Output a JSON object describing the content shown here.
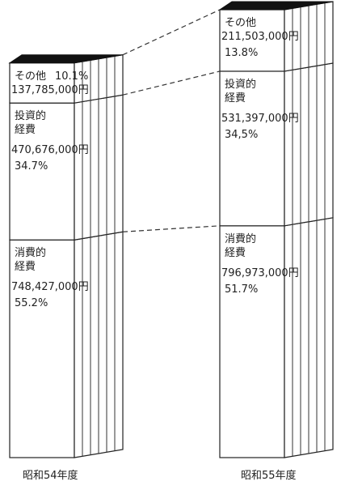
{
  "chart_data": {
    "type": "stacked_bar_3d",
    "categories": [
      "昭和54年度",
      "昭和55年度"
    ],
    "series": [
      {
        "name": "その他",
        "color": "#ffffff",
        "values": [
          137785000,
          211503000
        ],
        "value_labels": [
          "137,785,000円",
          "211,503,000円"
        ],
        "shares": [
          10.1,
          13.8
        ],
        "share_labels": [
          "10.1%",
          "13.8%"
        ]
      },
      {
        "name": "投資的\n経費",
        "color": "#ffffff",
        "values": [
          470676000,
          531397000
        ],
        "value_labels": [
          "470,676,000円",
          "531,397,000円"
        ],
        "shares": [
          34.7,
          34.5
        ],
        "share_labels": [
          "34.7%",
          "34,5%"
        ]
      },
      {
        "name": "消費的\n経費",
        "color": "#ffffff",
        "values": [
          748427000,
          796973000
        ],
        "value_labels": [
          "748,427,000円",
          "796,973,000円"
        ],
        "shares": [
          55.2,
          51.7
        ],
        "share_labels": [
          "55.2%",
          "51.7%"
        ]
      }
    ]
  }
}
